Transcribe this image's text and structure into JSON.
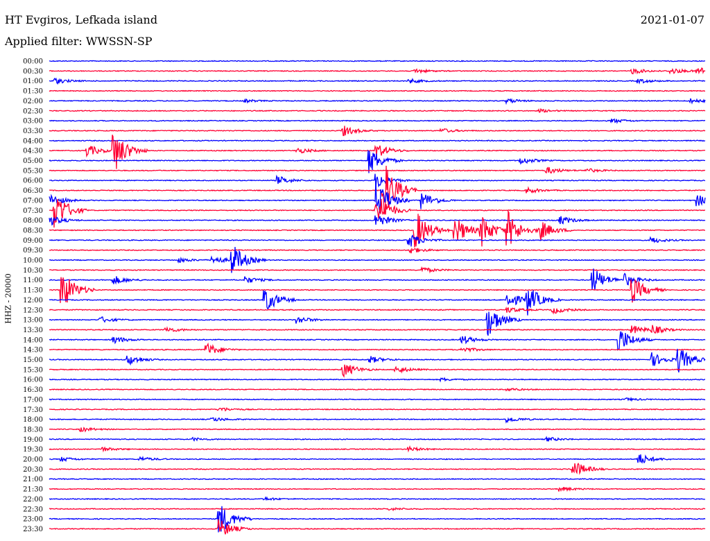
{
  "header": {
    "station": "HT Evgiros, Lefkada island",
    "date": "2021-01-07",
    "filter": "Applied filter: WWSSN-SP"
  },
  "chart_data": {
    "type": "line",
    "title": "HT Evgiros, Lefkada island",
    "ylabel": "HHZ - 20000",
    "row_colors": [
      "#0000ff",
      "#ff0033"
    ],
    "rows": [
      {
        "label": "00:00",
        "events": []
      },
      {
        "label": "00:30",
        "events": [
          {
            "t": 0.56,
            "a": 3
          },
          {
            "t": 0.89,
            "a": 4
          },
          {
            "t": 0.95,
            "a": 4
          },
          {
            "t": 0.99,
            "a": 6
          }
        ]
      },
      {
        "label": "01:00",
        "events": [
          {
            "t": 0.01,
            "a": 4
          },
          {
            "t": 0.55,
            "a": 3
          },
          {
            "t": 0.9,
            "a": 3
          }
        ]
      },
      {
        "label": "01:30",
        "events": []
      },
      {
        "label": "02:00",
        "events": [
          {
            "t": 0.3,
            "a": 2
          },
          {
            "t": 0.7,
            "a": 3
          },
          {
            "t": 0.98,
            "a": 3
          }
        ]
      },
      {
        "label": "02:30",
        "events": [
          {
            "t": 0.75,
            "a": 2
          }
        ]
      },
      {
        "label": "03:00",
        "events": [
          {
            "t": 0.86,
            "a": 3
          }
        ]
      },
      {
        "label": "03:30",
        "events": [
          {
            "t": 0.45,
            "a": 7
          },
          {
            "t": 0.6,
            "a": 3
          }
        ]
      },
      {
        "label": "04:00",
        "events": []
      },
      {
        "label": "04:30",
        "events": [
          {
            "t": 0.06,
            "a": 8
          },
          {
            "t": 0.1,
            "a": 30
          },
          {
            "t": 0.38,
            "a": 4
          },
          {
            "t": 0.5,
            "a": 10
          }
        ]
      },
      {
        "label": "05:00",
        "events": [
          {
            "t": 0.49,
            "a": 18
          },
          {
            "t": 0.72,
            "a": 5
          }
        ]
      },
      {
        "label": "05:30",
        "events": [
          {
            "t": 0.76,
            "a": 5
          },
          {
            "t": 0.82,
            "a": 3
          }
        ]
      },
      {
        "label": "06:00",
        "events": [
          {
            "t": 0.35,
            "a": 6
          },
          {
            "t": 0.5,
            "a": 12
          }
        ]
      },
      {
        "label": "06:30",
        "events": [
          {
            "t": 0.51,
            "a": 45
          },
          {
            "t": 0.73,
            "a": 4
          }
        ]
      },
      {
        "label": "07:00",
        "events": [
          {
            "t": 0.0,
            "a": 10
          },
          {
            "t": 0.5,
            "a": 30
          },
          {
            "t": 0.57,
            "a": 12
          },
          {
            "t": 0.99,
            "a": 8
          }
        ]
      },
      {
        "label": "07:30",
        "events": [
          {
            "t": 0.01,
            "a": 28
          },
          {
            "t": 0.5,
            "a": 25
          }
        ]
      },
      {
        "label": "08:00",
        "events": [
          {
            "t": 0.0,
            "a": 8
          },
          {
            "t": 0.5,
            "a": 10
          },
          {
            "t": 0.78,
            "a": 6
          }
        ]
      },
      {
        "label": "08:30",
        "events": [
          {
            "t": 0.56,
            "a": 28
          },
          {
            "t": 0.62,
            "a": 20
          },
          {
            "t": 0.66,
            "a": 22
          },
          {
            "t": 0.7,
            "a": 25
          },
          {
            "t": 0.75,
            "a": 14
          }
        ]
      },
      {
        "label": "09:00",
        "events": [
          {
            "t": 0.55,
            "a": 10
          },
          {
            "t": 0.92,
            "a": 4
          }
        ]
      },
      {
        "label": "09:30",
        "events": [
          {
            "t": 0.55,
            "a": 5
          }
        ]
      },
      {
        "label": "10:00",
        "events": [
          {
            "t": 0.2,
            "a": 3
          },
          {
            "t": 0.25,
            "a": 6
          },
          {
            "t": 0.28,
            "a": 22
          }
        ]
      },
      {
        "label": "10:30",
        "events": [
          {
            "t": 0.57,
            "a": 4
          }
        ]
      },
      {
        "label": "11:00",
        "events": [
          {
            "t": 0.1,
            "a": 6
          },
          {
            "t": 0.3,
            "a": 5
          },
          {
            "t": 0.83,
            "a": 18
          },
          {
            "t": 0.88,
            "a": 8
          }
        ]
      },
      {
        "label": "11:30",
        "events": [
          {
            "t": 0.02,
            "a": 30
          },
          {
            "t": 0.89,
            "a": 18
          }
        ]
      },
      {
        "label": "12:00",
        "events": [
          {
            "t": 0.33,
            "a": 18
          },
          {
            "t": 0.7,
            "a": 12
          },
          {
            "t": 0.73,
            "a": 20
          }
        ]
      },
      {
        "label": "12:30",
        "events": [
          {
            "t": 0.7,
            "a": 4
          },
          {
            "t": 0.77,
            "a": 5
          }
        ]
      },
      {
        "label": "13:00",
        "events": [
          {
            "t": 0.08,
            "a": 4
          },
          {
            "t": 0.38,
            "a": 5
          },
          {
            "t": 0.67,
            "a": 24
          }
        ]
      },
      {
        "label": "13:30",
        "events": [
          {
            "t": 0.18,
            "a": 4
          },
          {
            "t": 0.89,
            "a": 6
          },
          {
            "t": 0.92,
            "a": 6
          }
        ]
      },
      {
        "label": "14:00",
        "events": [
          {
            "t": 0.1,
            "a": 5
          },
          {
            "t": 0.63,
            "a": 6
          },
          {
            "t": 0.87,
            "a": 18
          }
        ]
      },
      {
        "label": "14:30",
        "events": [
          {
            "t": 0.24,
            "a": 10
          },
          {
            "t": 0.63,
            "a": 4
          }
        ]
      },
      {
        "label": "15:00",
        "events": [
          {
            "t": 0.12,
            "a": 8
          },
          {
            "t": 0.49,
            "a": 5
          },
          {
            "t": 0.92,
            "a": 10
          },
          {
            "t": 0.96,
            "a": 18
          }
        ]
      },
      {
        "label": "15:30",
        "events": [
          {
            "t": 0.45,
            "a": 10
          },
          {
            "t": 0.53,
            "a": 5
          }
        ]
      },
      {
        "label": "16:00",
        "events": [
          {
            "t": 0.6,
            "a": 2
          }
        ]
      },
      {
        "label": "16:30",
        "events": [
          {
            "t": 0.7,
            "a": 2
          }
        ]
      },
      {
        "label": "17:00",
        "events": [
          {
            "t": 0.88,
            "a": 2
          }
        ]
      },
      {
        "label": "17:30",
        "events": [
          {
            "t": 0.26,
            "a": 3
          }
        ]
      },
      {
        "label": "18:00",
        "events": [
          {
            "t": 0.25,
            "a": 3
          },
          {
            "t": 0.7,
            "a": 4
          }
        ]
      },
      {
        "label": "18:30",
        "events": [
          {
            "t": 0.05,
            "a": 3
          }
        ]
      },
      {
        "label": "19:00",
        "events": [
          {
            "t": 0.22,
            "a": 2
          },
          {
            "t": 0.76,
            "a": 3
          }
        ]
      },
      {
        "label": "19:30",
        "events": [
          {
            "t": 0.08,
            "a": 3
          },
          {
            "t": 0.55,
            "a": 3
          }
        ]
      },
      {
        "label": "20:00",
        "events": [
          {
            "t": 0.02,
            "a": 3
          },
          {
            "t": 0.14,
            "a": 3
          },
          {
            "t": 0.9,
            "a": 8
          }
        ]
      },
      {
        "label": "20:30",
        "events": [
          {
            "t": 0.8,
            "a": 12
          }
        ]
      },
      {
        "label": "21:00",
        "events": []
      },
      {
        "label": "21:30",
        "events": [
          {
            "t": 0.78,
            "a": 3
          }
        ]
      },
      {
        "label": "22:00",
        "events": [
          {
            "t": 0.33,
            "a": 2
          }
        ]
      },
      {
        "label": "22:30",
        "events": [
          {
            "t": 0.52,
            "a": 2
          }
        ]
      },
      {
        "label": "23:00",
        "events": [
          {
            "t": 0.26,
            "a": 24
          }
        ]
      },
      {
        "label": "23:30",
        "events": [
          {
            "t": 0.26,
            "a": 14
          }
        ]
      }
    ]
  }
}
